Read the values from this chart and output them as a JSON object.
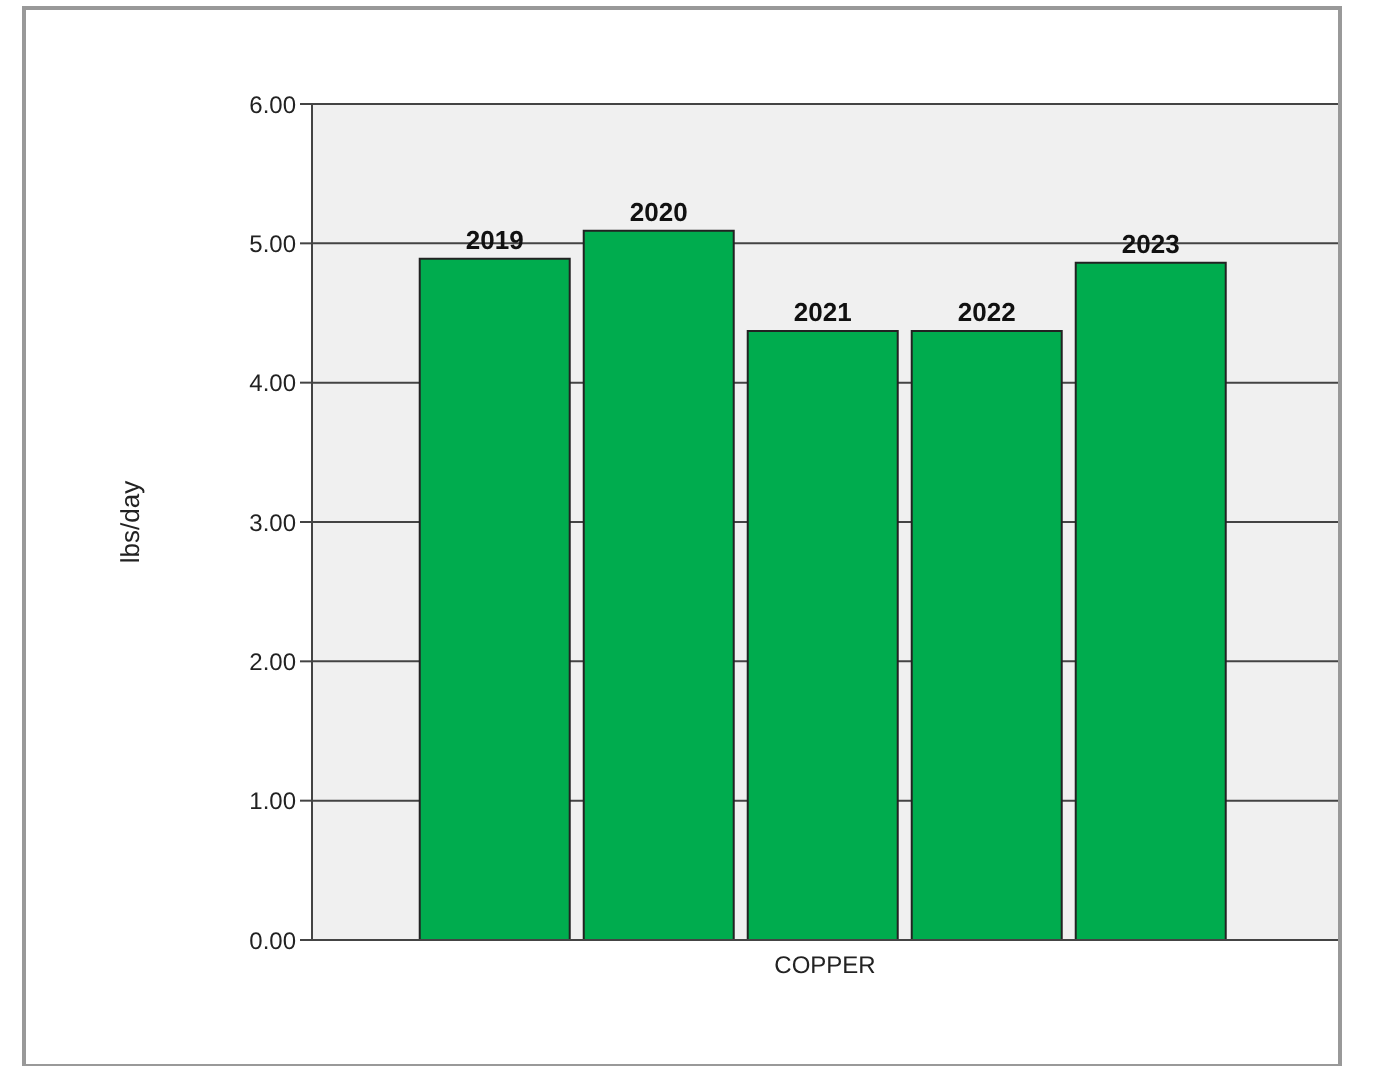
{
  "chart_data": {
    "type": "bar",
    "categories": [
      "COPPER"
    ],
    "ylabel": "lbs/day",
    "series": [
      {
        "name": "2019",
        "color": "#00ac4e",
        "values": [
          4.89
        ]
      },
      {
        "name": "2020",
        "color": "#00ac4e",
        "values": [
          5.09
        ]
      },
      {
        "name": "2021",
        "color": "#00ac4e",
        "values": [
          4.37
        ]
      },
      {
        "name": "2022",
        "color": "#00ac4e",
        "values": [
          4.37
        ]
      },
      {
        "name": "2023",
        "color": "#00ac4e",
        "values": [
          4.86
        ]
      }
    ],
    "ylim": [
      0,
      6
    ],
    "yticks": [
      {
        "value": 0,
        "label": "0.00"
      },
      {
        "value": 1,
        "label": "1.00"
      },
      {
        "value": 2,
        "label": "2.00"
      },
      {
        "value": 3,
        "label": "3.00"
      },
      {
        "value": 4,
        "label": "4.00"
      },
      {
        "value": 5,
        "label": "5.00"
      },
      {
        "value": 6,
        "label": "6.00"
      }
    ],
    "grid": "y",
    "legend": false
  }
}
